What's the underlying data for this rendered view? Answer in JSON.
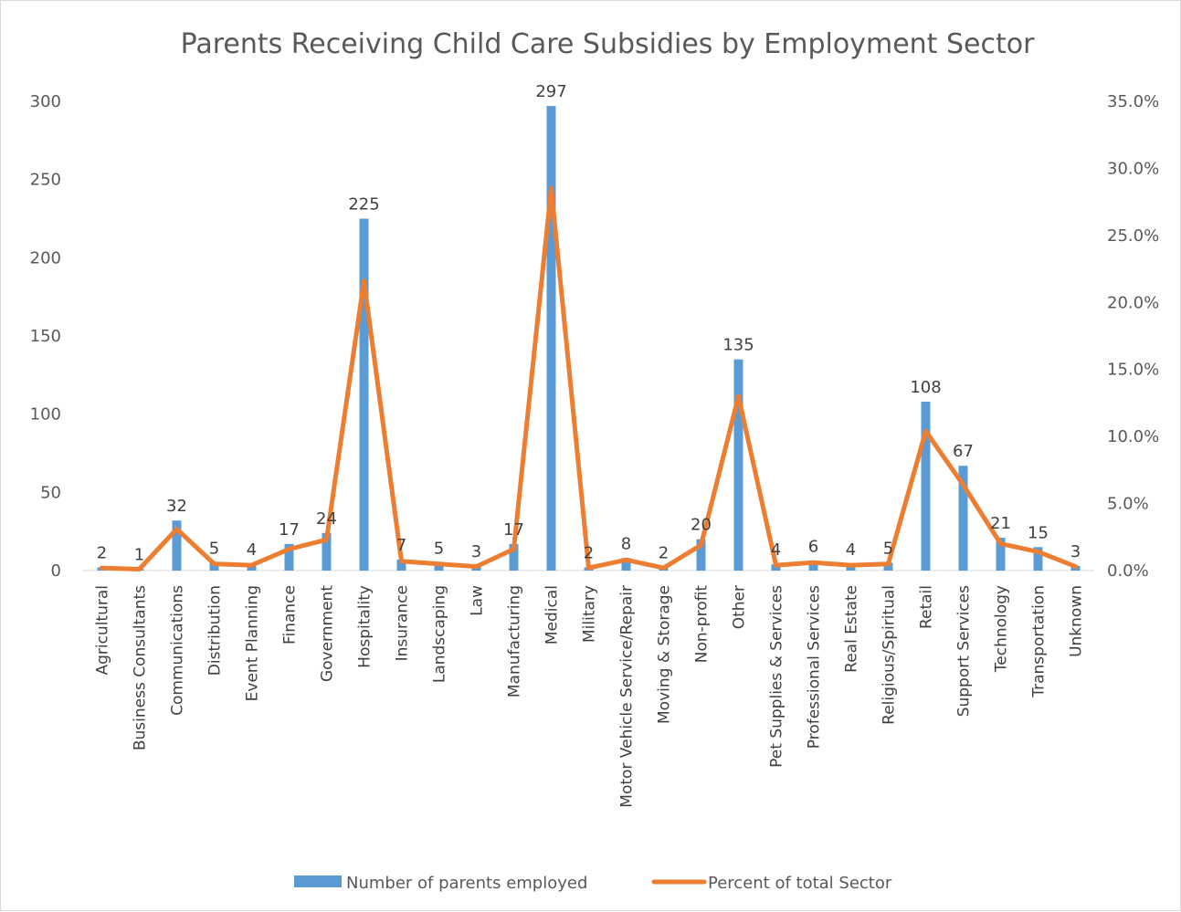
{
  "chart_data": {
    "type": "bar",
    "title": "Parents Receiving Child Care Subsidies by Employment Sector",
    "categories": [
      "Agricultural",
      "Business Consultants",
      "Communications",
      "Distribution",
      "Event Planning",
      "Finance",
      "Government",
      "Hospitality",
      "Insurance",
      "Landscaping",
      "Law",
      "Manufacturing",
      "Medical",
      "Military",
      "Motor Vehicle Service/Repair",
      "Moving & Storage",
      "Non-profit",
      "Other",
      "Pet Supplies & Services",
      "Professional Services",
      "Real Estate",
      "Religious/Spiritual",
      "Retail",
      "Support Services",
      "Technology",
      "Transportation",
      "Unknown"
    ],
    "series": [
      {
        "name": "Number of parents employed",
        "type": "bar",
        "axis": "left",
        "color": "#5b9bd5",
        "values": [
          2,
          1,
          32,
          5,
          4,
          17,
          24,
          225,
          7,
          5,
          3,
          17,
          297,
          2,
          8,
          2,
          20,
          135,
          4,
          6,
          4,
          5,
          108,
          67,
          21,
          15,
          3
        ]
      },
      {
        "name": "Percent of total Sector",
        "type": "line",
        "axis": "right",
        "color": "#ed7d31",
        "values": [
          0.2,
          0.1,
          3.1,
          0.5,
          0.4,
          1.6,
          2.3,
          21.6,
          0.7,
          0.5,
          0.3,
          1.6,
          28.5,
          0.2,
          0.8,
          0.2,
          1.9,
          13.0,
          0.4,
          0.6,
          0.4,
          0.5,
          10.4,
          6.4,
          2.0,
          1.4,
          0.3
        ]
      }
    ],
    "y_left": {
      "ylim": [
        0,
        300
      ],
      "ticks": [
        "0",
        "50",
        "100",
        "150",
        "200",
        "250",
        "300"
      ]
    },
    "y_right": {
      "ylim": [
        0,
        35
      ],
      "ticks": [
        "0.0%",
        "5.0%",
        "10.0%",
        "15.0%",
        "20.0%",
        "25.0%",
        "30.0%",
        "35.0%"
      ]
    },
    "data_labels": [
      "2",
      "1",
      "32",
      "5",
      "4",
      "17",
      "24",
      "225",
      "7",
      "5",
      "3",
      "17",
      "297",
      "2",
      "8",
      "2",
      "20",
      "135",
      "4",
      "6",
      "4",
      "5",
      "108",
      "67",
      "21",
      "15",
      "3"
    ],
    "grid": false,
    "legend_position": "bottom"
  }
}
